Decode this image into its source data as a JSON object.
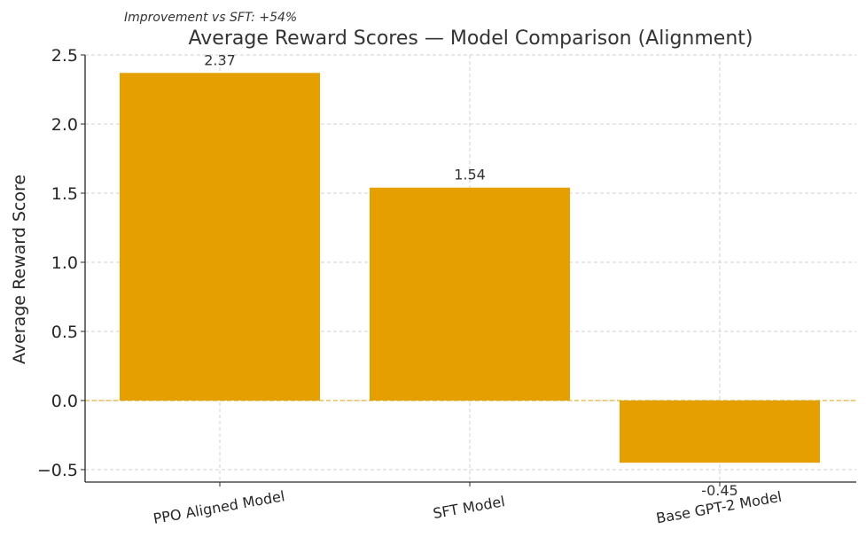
{
  "chart_data": {
    "type": "bar",
    "title": "Average Reward Scores — Model Comparison (Alignment)",
    "annotation": "Improvement vs SFT: +54%",
    "xlabel": "",
    "ylabel": "Average Reward Score",
    "categories": [
      "PPO Aligned Model",
      "SFT Model",
      "Base GPT-2 Model"
    ],
    "values": [
      2.37,
      1.54,
      -0.45
    ],
    "value_labels": [
      "2.37",
      "1.54",
      "-0.45"
    ],
    "ylim": [
      -0.59,
      2.5
    ],
    "yticks": [
      -0.5,
      0.0,
      0.5,
      1.0,
      1.5,
      2.0,
      2.5
    ],
    "ytick_labels": [
      "−0.5",
      "0.0",
      "0.5",
      "1.0",
      "1.5",
      "2.0",
      "2.5"
    ],
    "grid": true,
    "bar_color": "#e5a000",
    "zero_line_color": "#d4a100"
  }
}
